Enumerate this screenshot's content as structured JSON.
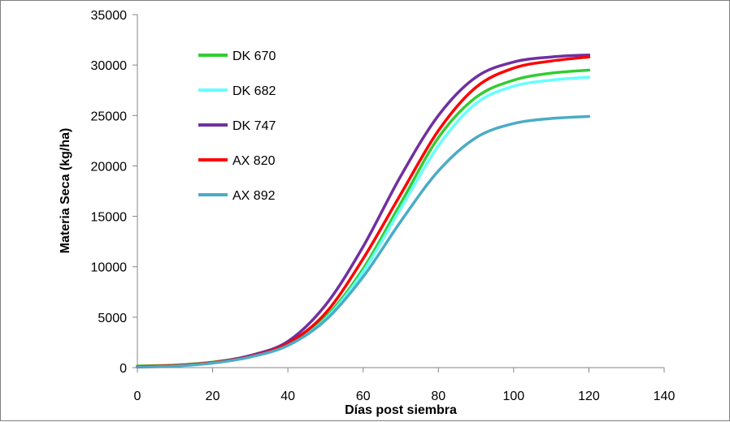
{
  "chart_data": {
    "type": "line",
    "title": "",
    "xlabel": "Días post siembra",
    "ylabel": "Materia Seca (kg/ha)",
    "xlim": [
      0,
      140
    ],
    "ylim": [
      0,
      35000
    ],
    "xticks": [
      0,
      20,
      40,
      60,
      80,
      100,
      120,
      140
    ],
    "yticks": [
      0,
      5000,
      10000,
      15000,
      20000,
      25000,
      30000,
      35000
    ],
    "grid": false,
    "legend_position": "top-left inside plot",
    "x": [
      0,
      10,
      20,
      30,
      40,
      50,
      60,
      70,
      80,
      90,
      100,
      110,
      120
    ],
    "series": [
      {
        "name": "DK 670",
        "color": "#33cc33",
        "values": [
          150,
          250,
          550,
          1150,
          2300,
          5000,
          9800,
          16300,
          22800,
          26800,
          28500,
          29200,
          29500
        ]
      },
      {
        "name": "DK 682",
        "color": "#66ffff",
        "values": [
          100,
          200,
          500,
          1100,
          2200,
          4800,
          9500,
          15800,
          22000,
          26200,
          27900,
          28500,
          28800
        ]
      },
      {
        "name": "DK 747",
        "color": "#7030a0",
        "values": [
          100,
          200,
          500,
          1200,
          2600,
          6200,
          12000,
          19000,
          25000,
          28800,
          30300,
          30800,
          31000
        ]
      },
      {
        "name": "AX 820",
        "color": "#ff0000",
        "values": [
          100,
          200,
          500,
          1100,
          2400,
          5400,
          10800,
          17200,
          23500,
          27800,
          29700,
          30400,
          30800
        ]
      },
      {
        "name": "AX 892",
        "color": "#4bacc6",
        "values": [
          50,
          150,
          450,
          1050,
          2200,
          4700,
          9000,
          14500,
          19500,
          22800,
          24200,
          24700,
          24900
        ]
      }
    ]
  }
}
